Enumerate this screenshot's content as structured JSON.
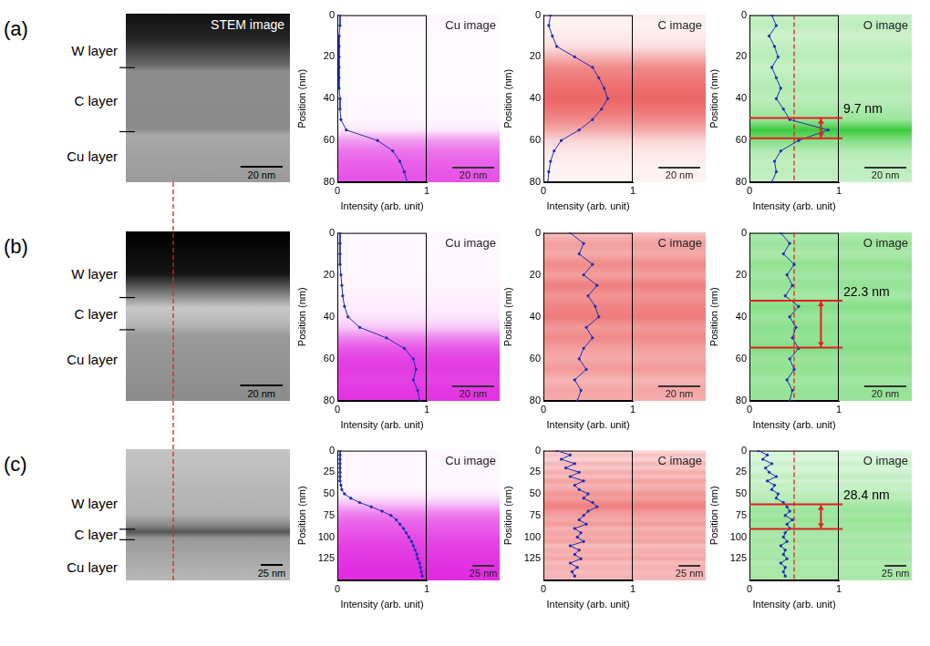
{
  "figure": {
    "rows": [
      {
        "letter": "(a)",
        "title": "STEM image",
        "layers": [
          "W layer",
          "C layer",
          "Cu layer"
        ],
        "scale_bar": {
          "label": "20 nm",
          "value": 20
        }
      },
      {
        "letter": "(b)",
        "layers": [
          "W layer",
          "C layer",
          "Cu layer"
        ],
        "scale_bar": {
          "label": "20 nm",
          "value": 20
        }
      },
      {
        "letter": "(c)",
        "layers": [
          "W layer",
          "C layer",
          "Cu layer"
        ],
        "scale_bar": {
          "label": "25 nm",
          "value": 25
        }
      }
    ]
  },
  "chart_data": [
    {
      "type": "line",
      "title": "Cu image",
      "x_label": "Intensity (arb. unit)",
      "y_label": "Position (nm)",
      "xlim": [
        0,
        1
      ],
      "xticks": [
        0,
        1
      ],
      "ylim": [
        0,
        80
      ],
      "yticks": [
        0,
        20,
        40,
        60,
        80
      ],
      "grid": false,
      "color": "#e020e0",
      "positions": [
        0,
        5,
        10,
        15,
        20,
        25,
        30,
        35,
        40,
        45,
        50,
        55,
        60,
        65,
        70,
        75,
        80
      ],
      "values": [
        0.03,
        0.03,
        0.02,
        0.02,
        0.02,
        0.02,
        0.02,
        0.02,
        0.03,
        0.03,
        0.04,
        0.1,
        0.45,
        0.62,
        0.7,
        0.75,
        0.78
      ],
      "scale_bar": {
        "label": "20 nm",
        "value": 20
      }
    },
    {
      "type": "line",
      "title": "C image",
      "x_label": "Intensity (arb. unit)",
      "y_label": "Position (nm)",
      "xlim": [
        0,
        1
      ],
      "xticks": [
        0,
        1
      ],
      "ylim": [
        0,
        80
      ],
      "yticks": [
        0,
        20,
        40,
        60,
        80
      ],
      "grid": false,
      "color": "#e52a2a",
      "positions": [
        0,
        5,
        10,
        15,
        20,
        25,
        30,
        35,
        40,
        45,
        50,
        55,
        60,
        65,
        70,
        75,
        80
      ],
      "values": [
        0.08,
        0.06,
        0.1,
        0.15,
        0.35,
        0.55,
        0.62,
        0.68,
        0.72,
        0.65,
        0.55,
        0.4,
        0.2,
        0.12,
        0.08,
        0.06,
        0.05
      ],
      "scale_bar": {
        "label": "20 nm",
        "value": 20
      }
    },
    {
      "type": "line",
      "title": "O image",
      "x_label": "Intensity (arb. unit)",
      "y_label": "Position (nm)",
      "xlim": [
        0,
        1
      ],
      "xticks": [
        0,
        1
      ],
      "ylim": [
        0,
        80
      ],
      "yticks": [
        0,
        20,
        40,
        60,
        80
      ],
      "grid": false,
      "color": "#22c422",
      "positions": [
        0,
        5,
        10,
        15,
        20,
        25,
        30,
        35,
        40,
        45,
        50,
        55,
        60,
        65,
        70,
        75,
        80
      ],
      "values": [
        0.25,
        0.3,
        0.22,
        0.28,
        0.32,
        0.25,
        0.3,
        0.35,
        0.3,
        0.38,
        0.45,
        0.88,
        0.55,
        0.35,
        0.28,
        0.3,
        0.25
      ],
      "scale_bar": {
        "label": "20 nm",
        "value": 20
      },
      "threshold": 0.5,
      "interval": [
        49.2,
        58.9
      ],
      "interval_label": "9.7 nm"
    },
    {
      "type": "line",
      "title": "Cu image",
      "x_label": "Intensity (arb. unit)",
      "y_label": "Position (nm)",
      "xlim": [
        0,
        1
      ],
      "xticks": [
        0,
        1
      ],
      "ylim": [
        0,
        80
      ],
      "yticks": [
        0,
        20,
        40,
        60,
        80
      ],
      "grid": false,
      "color": "#e020e0",
      "positions": [
        0,
        5,
        10,
        15,
        20,
        25,
        30,
        35,
        40,
        45,
        50,
        55,
        60,
        65,
        70,
        75,
        80
      ],
      "values": [
        0.03,
        0.03,
        0.03,
        0.03,
        0.04,
        0.05,
        0.06,
        0.08,
        0.12,
        0.25,
        0.55,
        0.75,
        0.85,
        0.88,
        0.85,
        0.9,
        0.92
      ],
      "scale_bar": {
        "label": "20 nm",
        "value": 20
      }
    },
    {
      "type": "line",
      "title": "C image",
      "x_label": "Intensity (arb. unit)",
      "y_label": "Position (nm)",
      "xlim": [
        0,
        1
      ],
      "xticks": [
        0,
        1
      ],
      "ylim": [
        0,
        80
      ],
      "yticks": [
        0,
        20,
        40,
        60,
        80
      ],
      "grid": false,
      "color": "#e52a2a",
      "positions": [
        0,
        5,
        10,
        15,
        20,
        25,
        30,
        35,
        40,
        45,
        50,
        55,
        60,
        65,
        70,
        75,
        80
      ],
      "values": [
        0.3,
        0.45,
        0.4,
        0.55,
        0.45,
        0.6,
        0.5,
        0.58,
        0.62,
        0.48,
        0.55,
        0.45,
        0.4,
        0.48,
        0.35,
        0.42,
        0.38
      ],
      "scale_bar": {
        "label": "20 nm",
        "value": 20
      }
    },
    {
      "type": "line",
      "title": "O image",
      "x_label": "Intensity (arb. unit)",
      "y_label": "Position (nm)",
      "xlim": [
        0,
        1
      ],
      "xticks": [
        0,
        1
      ],
      "ylim": [
        0,
        80
      ],
      "yticks": [
        0,
        20,
        40,
        60,
        80
      ],
      "grid": false,
      "color": "#22c422",
      "positions": [
        0,
        5,
        10,
        15,
        20,
        25,
        30,
        35,
        40,
        45,
        50,
        55,
        60,
        65,
        70,
        75,
        80
      ],
      "values": [
        0.35,
        0.45,
        0.38,
        0.5,
        0.42,
        0.48,
        0.4,
        0.55,
        0.45,
        0.52,
        0.48,
        0.55,
        0.45,
        0.5,
        0.42,
        0.48,
        0.45
      ],
      "scale_bar": {
        "label": "20 nm",
        "value": 20
      },
      "threshold": 0.5,
      "interval": [
        32.3,
        54.6
      ],
      "interval_label": "22.3 nm"
    },
    {
      "type": "line",
      "title": "Cu image",
      "x_label": "Intensity (arb. unit)",
      "y_label": "Position (nm)",
      "xlim": [
        0,
        1
      ],
      "xticks": [
        0,
        1
      ],
      "ylim": [
        0,
        150
      ],
      "yticks": [
        0,
        25,
        50,
        75,
        100,
        125
      ],
      "grid": false,
      "color": "#e020e0",
      "positions": [
        0,
        5,
        10,
        15,
        20,
        25,
        30,
        35,
        40,
        45,
        50,
        55,
        60,
        65,
        70,
        75,
        80,
        85,
        90,
        95,
        100,
        105,
        110,
        115,
        120,
        125,
        130,
        135,
        140,
        145
      ],
      "values": [
        0.03,
        0.03,
        0.03,
        0.03,
        0.03,
        0.03,
        0.03,
        0.03,
        0.04,
        0.05,
        0.08,
        0.15,
        0.25,
        0.38,
        0.5,
        0.6,
        0.66,
        0.7,
        0.74,
        0.77,
        0.8,
        0.83,
        0.85,
        0.87,
        0.89,
        0.9,
        0.92,
        0.93,
        0.94,
        0.95
      ],
      "scale_bar": {
        "label": "25 nm",
        "value": 25
      }
    },
    {
      "type": "line",
      "title": "C image",
      "x_label": "Intensity (arb. unit)",
      "y_label": "Position (nm)",
      "xlim": [
        0,
        1
      ],
      "xticks": [
        0,
        1
      ],
      "ylim": [
        0,
        150
      ],
      "yticks": [
        0,
        25,
        50,
        75,
        100,
        125
      ],
      "grid": false,
      "color": "#e52a2a",
      "positions": [
        0,
        5,
        10,
        15,
        20,
        25,
        30,
        35,
        40,
        45,
        50,
        55,
        60,
        65,
        70,
        75,
        80,
        85,
        90,
        95,
        100,
        105,
        110,
        115,
        120,
        125,
        130,
        135,
        140,
        145
      ],
      "values": [
        0.15,
        0.3,
        0.2,
        0.35,
        0.25,
        0.4,
        0.3,
        0.45,
        0.35,
        0.4,
        0.5,
        0.45,
        0.55,
        0.6,
        0.5,
        0.45,
        0.4,
        0.48,
        0.35,
        0.42,
        0.38,
        0.45,
        0.3,
        0.4,
        0.35,
        0.42,
        0.3,
        0.38,
        0.32,
        0.35
      ],
      "scale_bar": {
        "label": "25 nm",
        "value": 25
      }
    },
    {
      "type": "line",
      "title": "O image",
      "x_label": "Intensity (arb. unit)",
      "y_label": "Position (nm)",
      "xlim": [
        0,
        1
      ],
      "xticks": [
        0,
        1
      ],
      "ylim": [
        0,
        150
      ],
      "yticks": [
        0,
        25,
        50,
        75,
        100,
        125
      ],
      "grid": false,
      "color": "#22c422",
      "positions": [
        0,
        5,
        10,
        15,
        20,
        25,
        30,
        35,
        40,
        45,
        50,
        55,
        60,
        65,
        70,
        75,
        80,
        85,
        90,
        95,
        100,
        105,
        110,
        115,
        120,
        125,
        130,
        135,
        140,
        145
      ],
      "values": [
        0.1,
        0.2,
        0.15,
        0.25,
        0.18,
        0.22,
        0.3,
        0.2,
        0.28,
        0.25,
        0.32,
        0.3,
        0.38,
        0.42,
        0.45,
        0.4,
        0.48,
        0.42,
        0.45,
        0.4,
        0.38,
        0.42,
        0.35,
        0.4,
        0.38,
        0.42,
        0.35,
        0.4,
        0.38,
        0.4
      ],
      "scale_bar": {
        "label": "25 nm",
        "value": 25
      },
      "threshold": 0.5,
      "interval": [
        62.0,
        90.4
      ],
      "interval_label": "28.4 nm"
    }
  ]
}
